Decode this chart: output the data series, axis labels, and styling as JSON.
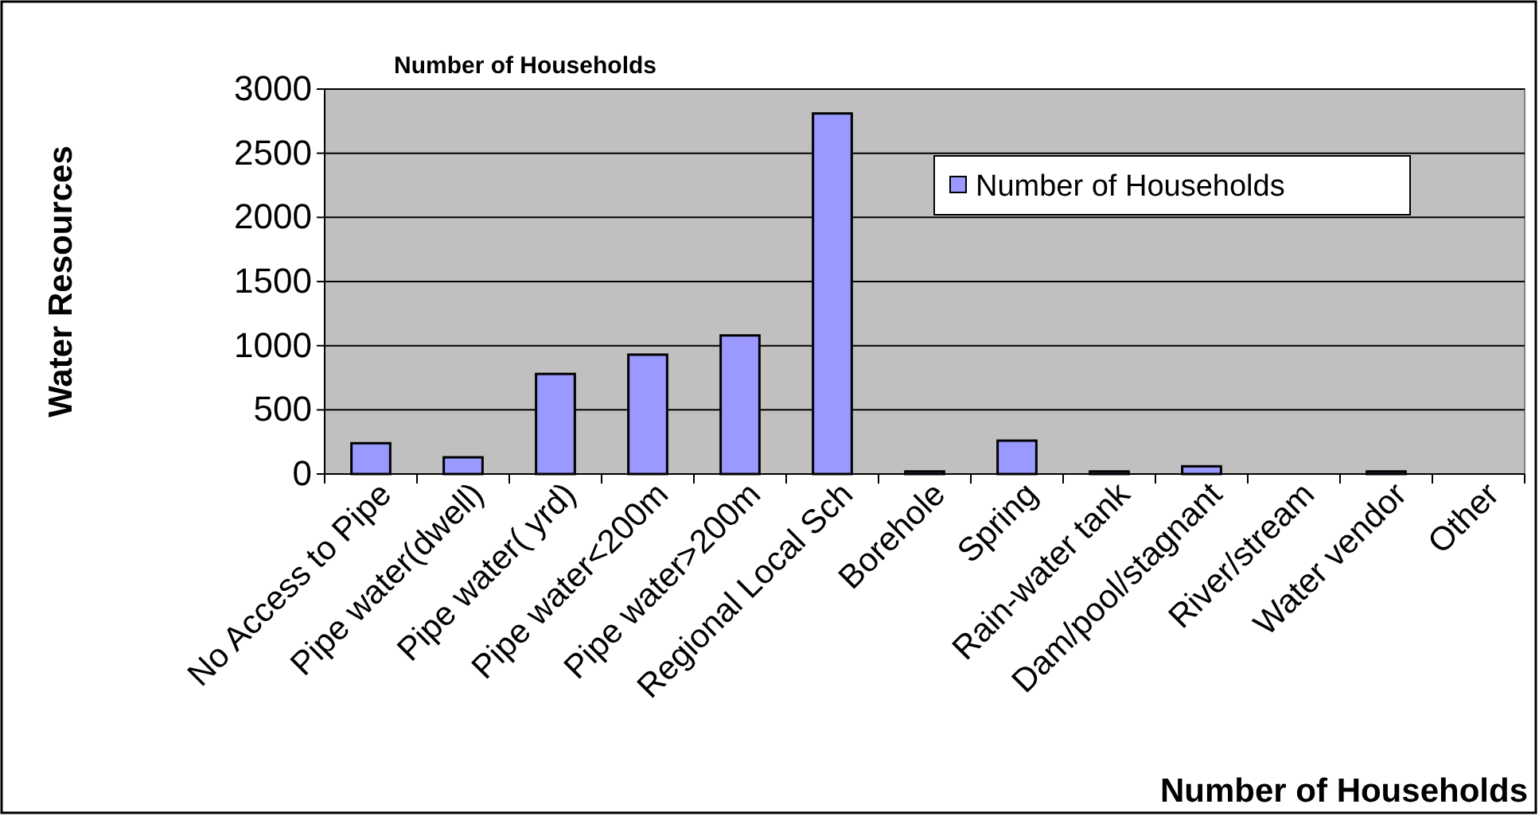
{
  "chart_data": {
    "type": "bar",
    "title": "Number of Households",
    "xlabel": "Number of Households",
    "ylabel": "Water Resources",
    "categories": [
      "No Access to Pipe",
      "Pipe water(dwell)",
      "Pipe water( yrd)",
      "Pipe water<200m",
      "Pipe water>200m",
      "Regional Local Sch",
      "Borehole",
      "Spring",
      "Rain-water tank",
      "Dam/pool/stagnant",
      "River/stream",
      "Water vendor",
      "Other"
    ],
    "series": [
      {
        "name": "Number of Households",
        "color": "#9999ff",
        "values": [
          240,
          130,
          780,
          930,
          1080,
          2810,
          20,
          260,
          20,
          60,
          0,
          20,
          0
        ]
      }
    ],
    "ylim": [
      0,
      3000
    ],
    "yticks": [
      0,
      500,
      1000,
      1500,
      2000,
      2500,
      3000
    ],
    "grid": "y",
    "legend": "top right"
  }
}
